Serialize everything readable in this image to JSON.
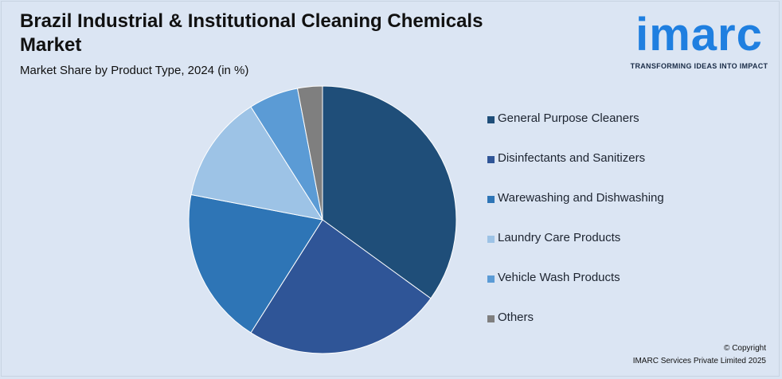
{
  "title": "Brazil Industrial & Institutional Cleaning Chemicals Market",
  "subtitle": "Market Share by Product Type, 2024 (in %)",
  "logo": {
    "word": "imarc",
    "tagline": "TRANSFORMING IDEAS INTO IMPACT",
    "color": "#1f7fe0"
  },
  "copyright": {
    "line1": "© Copyright",
    "line2": "IMARC Services Private Limited 2025"
  },
  "chart_data": {
    "type": "pie",
    "title": "Brazil Industrial & Institutional Cleaning Chemicals Market",
    "subtitle": "Market Share by Product Type, 2024 (in %)",
    "legend_position": "right",
    "slices": [
      {
        "label": "General Purpose Cleaners",
        "value": 35,
        "color": "#1f4e79"
      },
      {
        "label": "Disinfectants and Sanitizers",
        "value": 24,
        "color": "#2f5597"
      },
      {
        "label": "Warewashing and Dishwashing",
        "value": 19,
        "color": "#2e75b6"
      },
      {
        "label": "Laundry Care Products",
        "value": 13,
        "color": "#9dc3e6"
      },
      {
        "label": "Vehicle Wash Products",
        "value": 6,
        "color": "#5b9bd5"
      },
      {
        "label": "Others",
        "value": 3,
        "color": "#7f7f7f"
      }
    ]
  }
}
